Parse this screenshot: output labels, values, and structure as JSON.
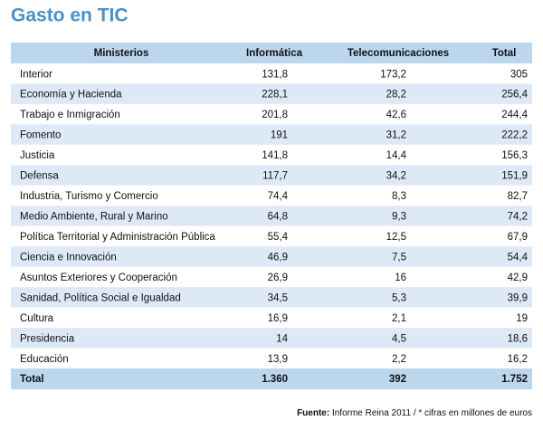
{
  "title": "Gasto en TIC",
  "table": {
    "header": [
      "Ministerios",
      "Informática",
      "Telecomunicaciones",
      "Total"
    ],
    "rows": [
      [
        "Interior",
        "131,8",
        "173,2",
        "305"
      ],
      [
        "Economía y Hacienda",
        "228,1",
        "28,2",
        "256,4"
      ],
      [
        "Trabajo e Inmigración",
        "201,8",
        "42,6",
        "244,4"
      ],
      [
        "Fomento",
        "191",
        "31,2",
        "222,2"
      ],
      [
        "Justicia",
        "141,8",
        "14,4",
        "156,3"
      ],
      [
        "Defensa",
        "117,7",
        "34,2",
        "151,9"
      ],
      [
        "Industria, Turismo y Comercio",
        "74,4",
        "8,3",
        "82,7"
      ],
      [
        "Medio Ambiente, Rural y Marino",
        "64,8",
        "9,3",
        "74,2"
      ],
      [
        "Política Territorial y Administración Pública",
        "55,4",
        "12,5",
        "67,9"
      ],
      [
        "Ciencia e Innovación",
        "46,9",
        "7,5",
        "54,4"
      ],
      [
        "Asuntos Exteriores y Cooperación",
        "26,9",
        "16",
        "42,9"
      ],
      [
        "Sanidad, Política Social e Igualdad",
        "34,5",
        "5,3",
        "39,9"
      ],
      [
        "Cultura",
        "16,9",
        "2,1",
        "19"
      ],
      [
        "Presidencia",
        "14",
        "4,5",
        "18,6"
      ],
      [
        "Educación",
        "13,9",
        "2,2",
        "16,2"
      ]
    ],
    "total": [
      "Total",
      "1.360",
      "392",
      "1.752"
    ]
  },
  "footnote": {
    "label": "Fuente:",
    "text": "Informe Reina 2011 / * cifras en millones de euros"
  }
}
